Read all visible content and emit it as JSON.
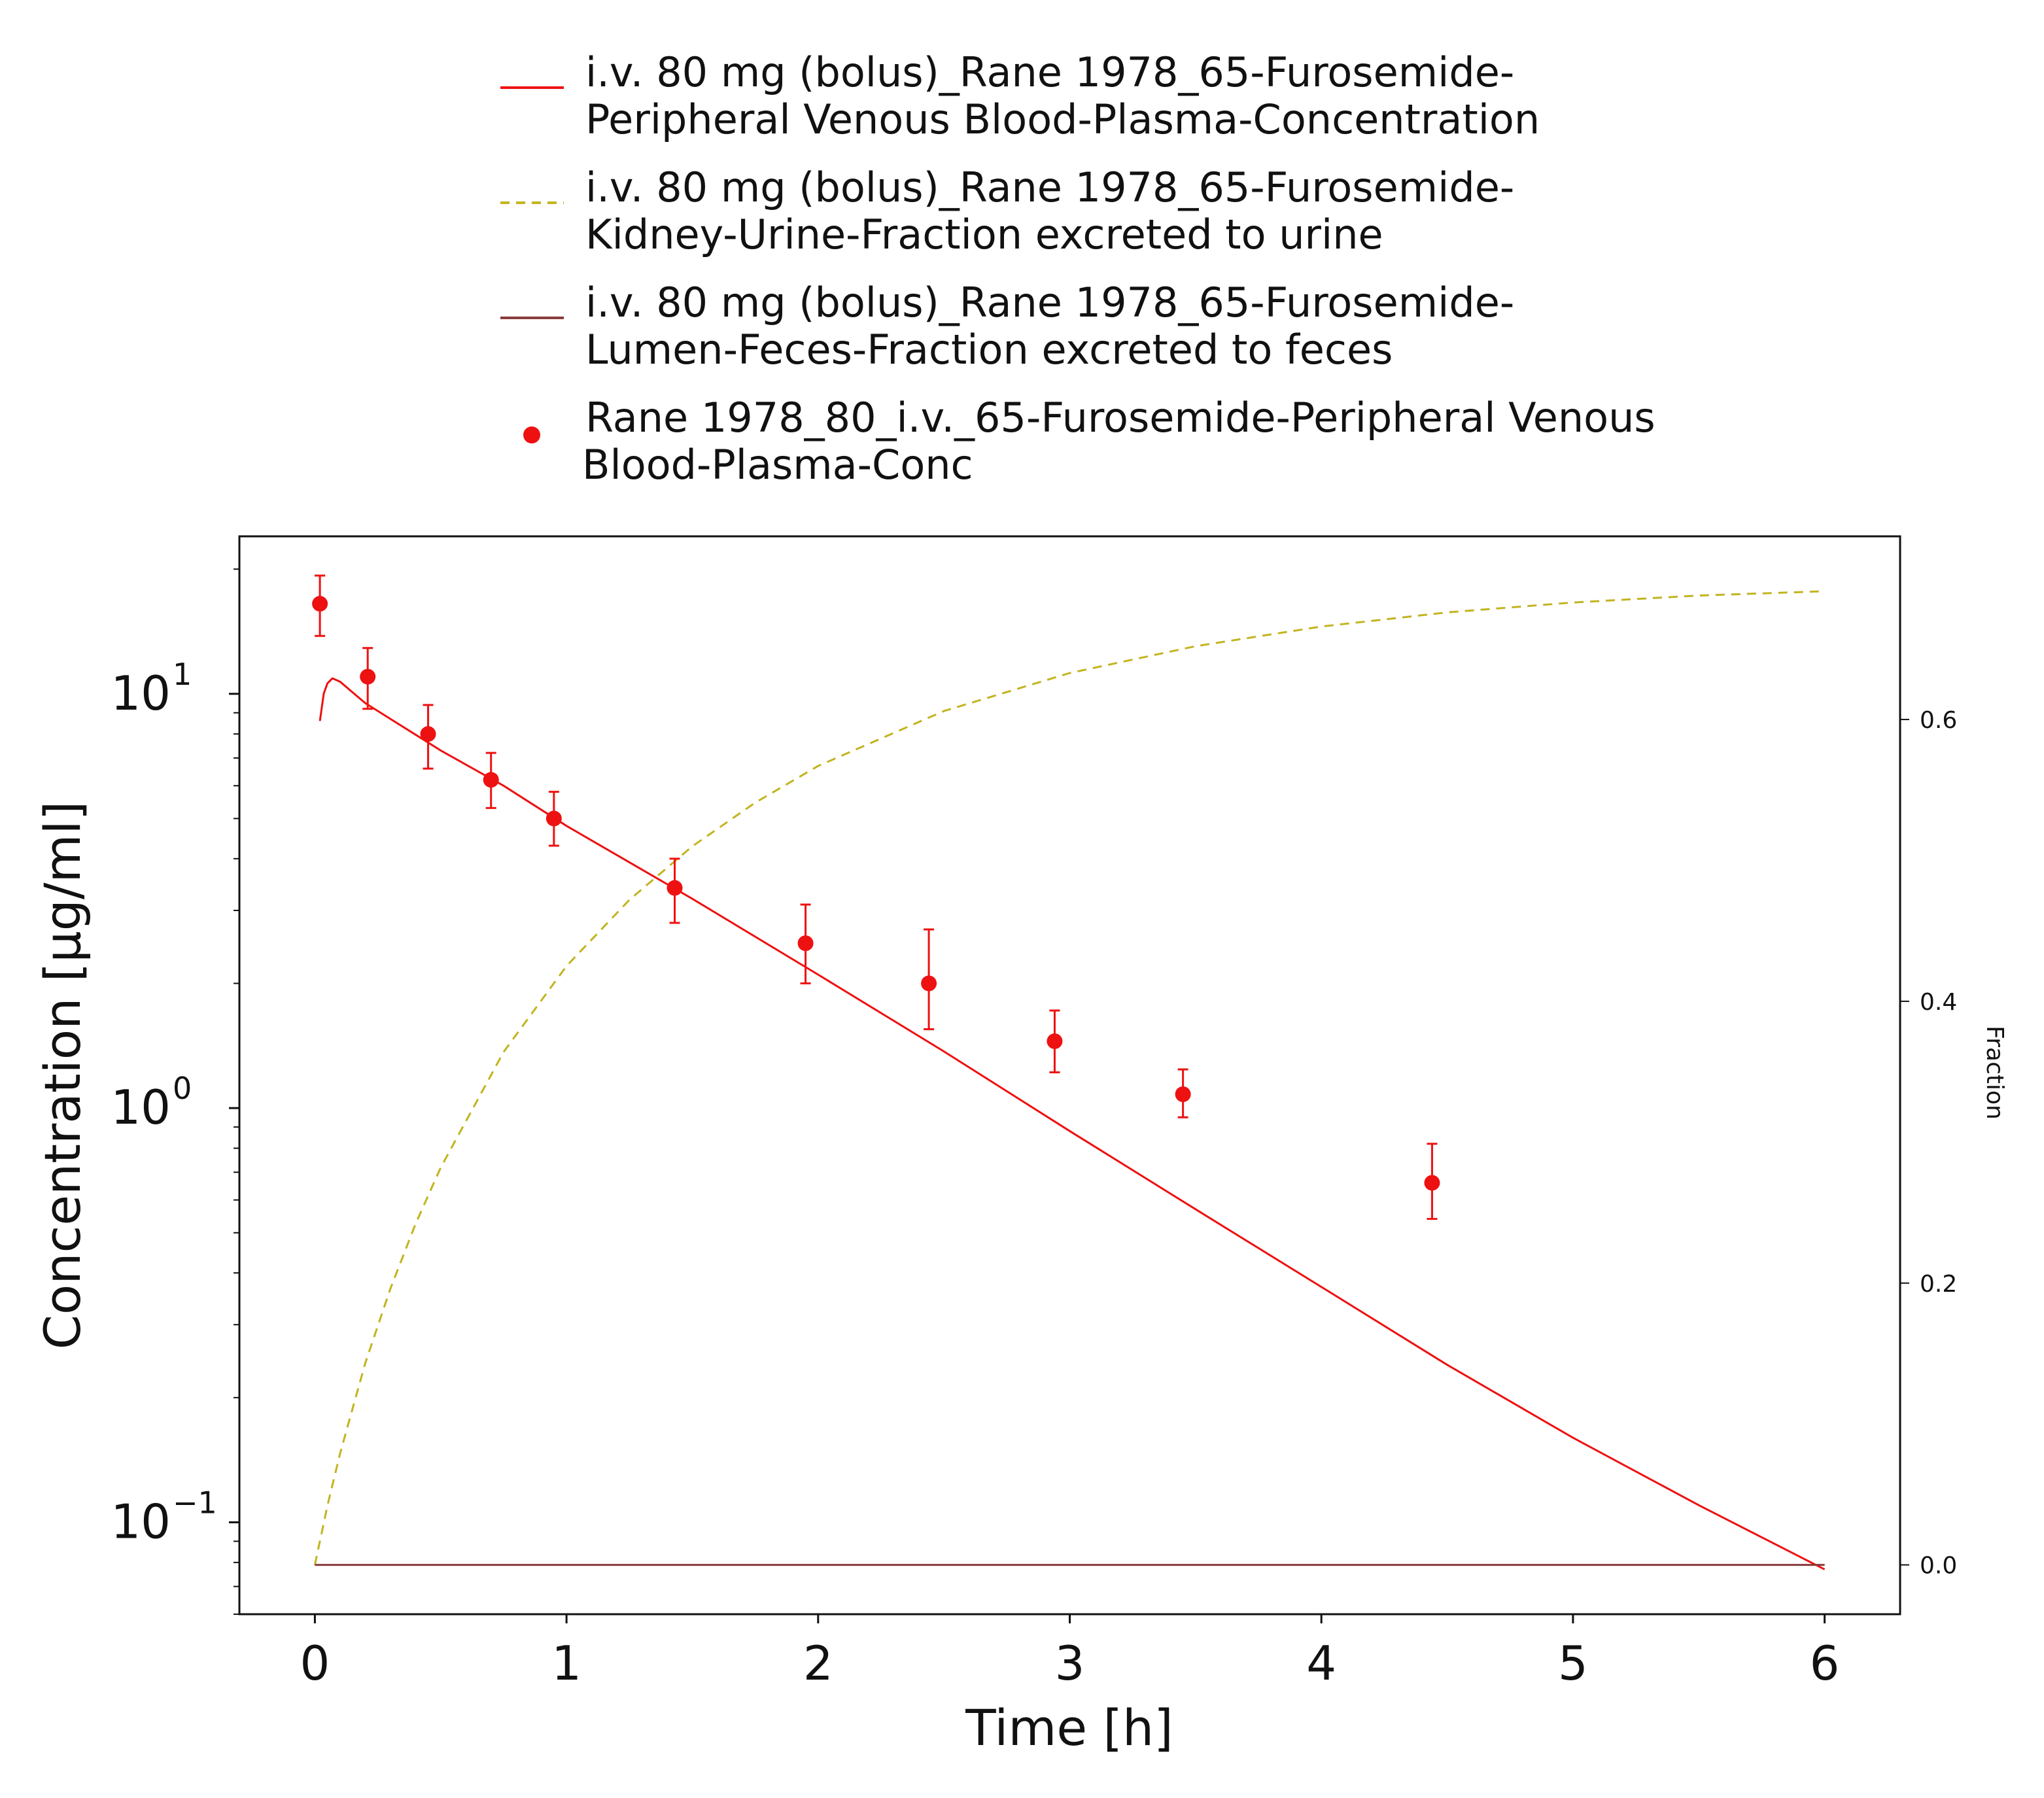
{
  "chart_data": {
    "type": "line",
    "x_axis": {
      "label": "Time [h]",
      "range": [
        -0.3,
        6.3
      ],
      "ticks": [
        0,
        1,
        2,
        3,
        4,
        5,
        6
      ],
      "tick_labels": [
        "0",
        "1",
        "2",
        "3",
        "4",
        "5",
        "6"
      ]
    },
    "y_axis_left": {
      "label": "Concentration [µg/ml]",
      "scale": "log",
      "range": [
        0.06,
        24
      ],
      "ticks": [
        0.1,
        1,
        10
      ],
      "tick_labels": [
        {
          "base": "10",
          "exponent": "−1"
        },
        {
          "base": "10",
          "exponent": "0"
        },
        {
          "base": "10",
          "exponent": "1"
        }
      ]
    },
    "y_axis_right": {
      "label": "Fraction",
      "scale": "linear",
      "range": [
        -0.035,
        0.73
      ],
      "ticks": [
        0.0,
        0.2,
        0.4,
        0.6
      ],
      "tick_labels": [
        "0.0",
        "0.2",
        "0.4",
        "0.6"
      ]
    },
    "grid": false,
    "legend_position": "top",
    "colors": {
      "plasma": "#ee1111",
      "urine": "#c2b41f",
      "feces": "#8a3a3a",
      "observed": "#ee1111"
    },
    "series": [
      {
        "name": "i.v. 80 mg (bolus)_Rane 1978_65-Furosemide-Peripheral Venous Blood-Plasma-Concentration",
        "legend_lines": [
          "i.v. 80 mg (bolus)_Rane 1978_65-Furosemide-",
          "Peripheral Venous Blood-Plasma-Concentration"
        ],
        "axis": "left",
        "style": "solid",
        "color_key": "plasma",
        "x": [
          0.02,
          0.035,
          0.05,
          0.07,
          0.1,
          0.14,
          0.2,
          0.3,
          0.5,
          0.75,
          1.0,
          1.5,
          2.0,
          2.5,
          3.0,
          3.5,
          4.0,
          4.5,
          5.0,
          5.5,
          6.0
        ],
        "y": [
          8.6,
          10.0,
          10.6,
          10.9,
          10.7,
          10.2,
          9.5,
          8.7,
          7.3,
          6.0,
          4.8,
          3.2,
          2.1,
          1.37,
          0.88,
          0.57,
          0.37,
          0.24,
          0.16,
          0.11,
          0.077
        ]
      },
      {
        "name": "i.v. 80 mg (bolus)_Rane 1978_65-Furosemide-Kidney-Urine-Fraction excreted to urine",
        "legend_lines": [
          "i.v. 80 mg (bolus)_Rane 1978_65-Furosemide-",
          "Kidney-Urine-Fraction excreted to urine"
        ],
        "axis": "right",
        "style": "dashed",
        "color_key": "urine",
        "x": [
          0.0,
          0.05,
          0.1,
          0.2,
          0.3,
          0.4,
          0.5,
          0.75,
          1.0,
          1.25,
          1.5,
          1.75,
          2.0,
          2.5,
          3.0,
          3.5,
          4.0,
          4.5,
          5.0,
          5.5,
          6.0
        ],
        "y": [
          0.0,
          0.042,
          0.079,
          0.143,
          0.196,
          0.242,
          0.282,
          0.364,
          0.425,
          0.472,
          0.51,
          0.541,
          0.567,
          0.606,
          0.633,
          0.652,
          0.666,
          0.676,
          0.683,
          0.688,
          0.691
        ]
      },
      {
        "name": "i.v. 80 mg (bolus)_Rane 1978_65-Furosemide-Lumen-Feces-Fraction excreted to feces",
        "legend_lines": [
          "i.v. 80 mg (bolus)_Rane 1978_65-Furosemide-",
          "Lumen-Feces-Fraction excreted to feces"
        ],
        "axis": "right",
        "style": "solid",
        "color_key": "feces",
        "x": [
          0.0,
          6.0
        ],
        "y": [
          0.0,
          0.0
        ]
      },
      {
        "name": "Rane 1978_80_i.v._65-Furosemide-Peripheral Venous Blood-Plasma-Conc",
        "legend_lines": [
          "Rane 1978_80_i.v._65-Furosemide-Peripheral Venous",
          "Blood-Plasma-Conc"
        ],
        "axis": "left",
        "style": "markers",
        "color_key": "observed",
        "x": [
          0.02,
          0.21,
          0.45,
          0.7,
          0.95,
          1.43,
          1.95,
          2.44,
          2.94,
          3.45,
          4.44
        ],
        "y": [
          16.5,
          11.0,
          8.0,
          6.2,
          5.0,
          3.4,
          2.5,
          2.0,
          1.45,
          1.08,
          0.66
        ],
        "y_low": [
          13.8,
          9.2,
          6.6,
          5.3,
          4.3,
          2.8,
          2.0,
          1.55,
          1.22,
          0.95,
          0.54
        ],
        "y_high": [
          19.3,
          12.9,
          9.4,
          7.2,
          5.8,
          4.0,
          3.1,
          2.7,
          1.72,
          1.24,
          0.82
        ]
      }
    ]
  }
}
